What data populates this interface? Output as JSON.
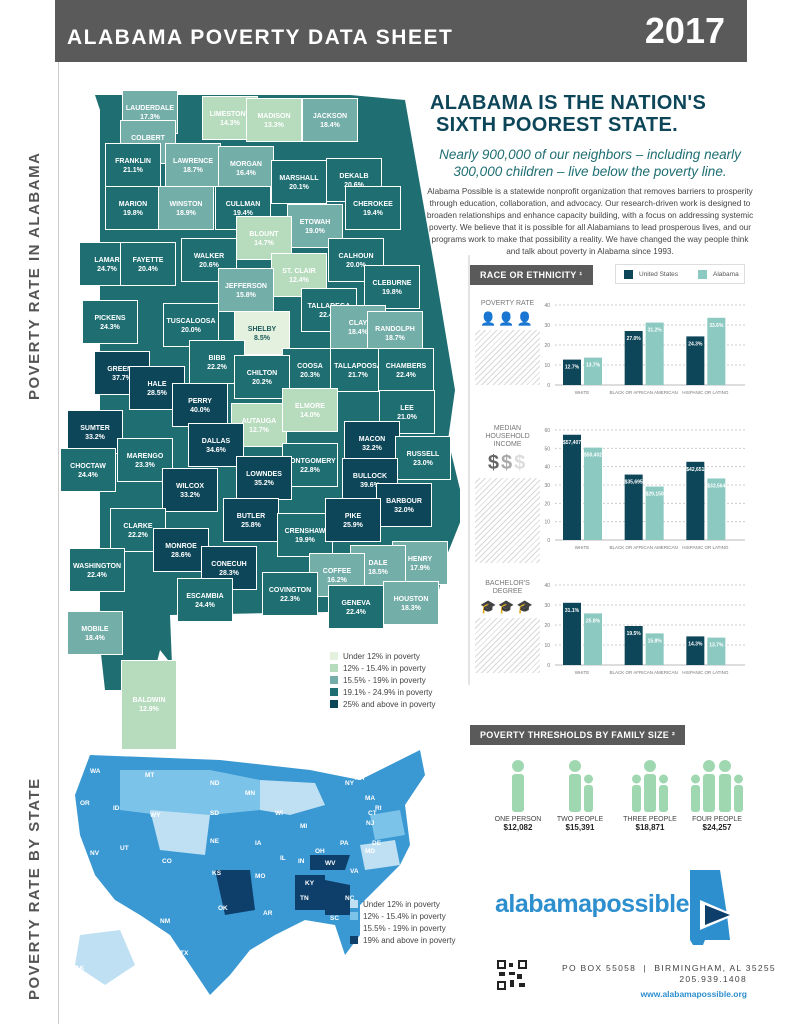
{
  "header": {
    "title": "ALABAMA POVERTY DATA SHEET",
    "year": "2017"
  },
  "side_labels": {
    "alabama": "POVERTY RATE IN ALABAMA",
    "states": "POVERTY RATE BY STATE"
  },
  "headline": [
    "ALABAMA IS THE NATION'S",
    "SIXTH POOREST STATE."
  ],
  "subheadline": "Nearly 900,000 of our neighbors – including nearly 300,000 children – live below the poverty line.",
  "paragraph": "Alabama Possible is a statewide nonprofit organization that removes barriers to prosperity through education, collaboration, and advocacy. Our research-driven work is designed to broaden relationships and enhance capacity building, with a focus on addressing systemic poverty. We believe that it is possible for all Alabamians to lead prosperous lives, and our programs work to make that possibility a reality. We have changed the way people think and talk about poverty in Alabama since 1993.",
  "colors": {
    "tier1": "#e4f1de",
    "tier2": "#b7dbbd",
    "tier3": "#74aea9",
    "tier4": "#1e6e72",
    "tier5": "#0d4659",
    "us": "#0d4659",
    "alabama": "#8cc9c1"
  },
  "counties": [
    {
      "name": "LAUDERDALE",
      "rate": "17.3%"
    },
    {
      "name": "LIMESTONE",
      "rate": "14.3%"
    },
    {
      "name": "MADISON",
      "rate": "13.3%"
    },
    {
      "name": "JACKSON",
      "rate": "18.4%"
    },
    {
      "name": "COLBERT",
      "rate": "18.1%"
    },
    {
      "name": "FRANKLIN",
      "rate": "21.1%"
    },
    {
      "name": "LAWRENCE",
      "rate": "18.7%"
    },
    {
      "name": "MORGAN",
      "rate": "16.4%"
    },
    {
      "name": "MARSHALL",
      "rate": "20.1%"
    },
    {
      "name": "DEKALB",
      "rate": "20.6%"
    },
    {
      "name": "MARION",
      "rate": "19.8%"
    },
    {
      "name": "WINSTON",
      "rate": "18.9%"
    },
    {
      "name": "CULLMAN",
      "rate": "19.4%"
    },
    {
      "name": "ETOWAH",
      "rate": "19.0%"
    },
    {
      "name": "CHEROKEE",
      "rate": "19.4%"
    },
    {
      "name": "BLOUNT",
      "rate": "14.7%"
    },
    {
      "name": "LAMAR",
      "rate": "24.7%"
    },
    {
      "name": "FAYETTE",
      "rate": "20.4%"
    },
    {
      "name": "WALKER",
      "rate": "20.6%"
    },
    {
      "name": "CALHOUN",
      "rate": "20.0%"
    },
    {
      "name": "ST. CLAIR",
      "rate": "12.4%"
    },
    {
      "name": "JEFFERSON",
      "rate": "15.8%"
    },
    {
      "name": "CLEBURNE",
      "rate": "19.8%"
    },
    {
      "name": "PICKENS",
      "rate": "24.3%"
    },
    {
      "name": "TUSCALOOSA",
      "rate": "20.0%"
    },
    {
      "name": "TALLADEGA",
      "rate": "22.4%"
    },
    {
      "name": "CLAY",
      "rate": "18.4%"
    },
    {
      "name": "RANDOLPH",
      "rate": "18.7%"
    },
    {
      "name": "SHELBY",
      "rate": "8.5%"
    },
    {
      "name": "BIBB",
      "rate": "22.2%"
    },
    {
      "name": "GREENE",
      "rate": "37.7%"
    },
    {
      "name": "HALE",
      "rate": "28.5%"
    },
    {
      "name": "COOSA",
      "rate": "20.3%"
    },
    {
      "name": "TALLAPOOSA",
      "rate": "21.7%"
    },
    {
      "name": "CHAMBERS",
      "rate": "22.4%"
    },
    {
      "name": "CHILTON",
      "rate": "20.2%"
    },
    {
      "name": "PERRY",
      "rate": "40.0%"
    },
    {
      "name": "AUTAUGA",
      "rate": "12.7%"
    },
    {
      "name": "ELMORE",
      "rate": "14.0%"
    },
    {
      "name": "LEE",
      "rate": "21.0%"
    },
    {
      "name": "SUMTER",
      "rate": "33.2%"
    },
    {
      "name": "DALLAS",
      "rate": "34.6%"
    },
    {
      "name": "MACON",
      "rate": "32.2%"
    },
    {
      "name": "RUSSELL",
      "rate": "23.0%"
    },
    {
      "name": "MARENGO",
      "rate": "23.3%"
    },
    {
      "name": "MONTGOMERY",
      "rate": "22.8%"
    },
    {
      "name": "CHOCTAW",
      "rate": "24.4%"
    },
    {
      "name": "LOWNDES",
      "rate": "35.2%"
    },
    {
      "name": "BULLOCK",
      "rate": "39.6%"
    },
    {
      "name": "WILCOX",
      "rate": "33.2%"
    },
    {
      "name": "BARBOUR",
      "rate": "32.0%"
    },
    {
      "name": "CLARKE",
      "rate": "22.2%"
    },
    {
      "name": "BUTLER",
      "rate": "25.8%"
    },
    {
      "name": "CRENSHAW",
      "rate": "19.9%"
    },
    {
      "name": "PIKE",
      "rate": "25.9%"
    },
    {
      "name": "MONROE",
      "rate": "28.6%"
    },
    {
      "name": "CONECUH",
      "rate": "28.3%"
    },
    {
      "name": "HENRY",
      "rate": "17.9%"
    },
    {
      "name": "WASHINGTON",
      "rate": "22.4%"
    },
    {
      "name": "DALE",
      "rate": "18.5%"
    },
    {
      "name": "COFFEE",
      "rate": "16.2%"
    },
    {
      "name": "COVINGTON",
      "rate": "22.3%"
    },
    {
      "name": "ESCAMBIA",
      "rate": "24.4%"
    },
    {
      "name": "GENEVA",
      "rate": "22.4%"
    },
    {
      "name": "HOUSTON",
      "rate": "18.3%"
    },
    {
      "name": "MOBILE",
      "rate": "18.4%"
    },
    {
      "name": "BALDWIN",
      "rate": "12.9%"
    }
  ],
  "al_legend": [
    "Under 12% in poverty",
    "12% - 15.4% in poverty",
    "15.5% - 19% in poverty",
    "19.1% - 24.9% in poverty",
    "25% and above in poverty"
  ],
  "us_legend": [
    "Under 12% in poverty",
    "12% - 15.4% in poverty",
    "15.5% - 19% in poverty",
    "19% and above in poverty"
  ],
  "states": [
    "WA",
    "MT",
    "ND",
    "MN",
    "ME",
    "OR",
    "ID",
    "WY",
    "SD",
    "WI",
    "MI",
    "NY",
    "VT",
    "NH",
    "MA",
    "NE",
    "IA",
    "IL",
    "IN",
    "OH",
    "PA",
    "NJ",
    "CT",
    "RI",
    "NV",
    "UT",
    "CO",
    "KS",
    "MO",
    "KY",
    "WV",
    "VA",
    "MD",
    "DE",
    "CA",
    "AZ",
    "NM",
    "OK",
    "AR",
    "TN",
    "NC",
    "SC",
    "TX",
    "LA",
    "MS",
    "AL",
    "GA",
    "FL",
    "AK",
    "HI"
  ],
  "race_section": {
    "title": "RACE OR ETHNICITY ¹",
    "legend": [
      "United States",
      "Alabama"
    ]
  },
  "chart_data": [
    {
      "type": "bar",
      "title": "POVERTY RATE",
      "icon": "person-icon",
      "categories": [
        "WHITE",
        "BLACK OR AFRICAN AMERICAN",
        "HISPANIC OR LATINO"
      ],
      "ylim": [
        0,
        40
      ],
      "yticks": [
        "0",
        "10",
        "20",
        "30",
        "40"
      ],
      "grid": true,
      "series": [
        {
          "name": "United States",
          "values": [
            12.7,
            27.0,
            24.3
          ],
          "labels": [
            "12.7%",
            "27.0%",
            "24.3%"
          ]
        },
        {
          "name": "Alabama",
          "values": [
            13.7,
            31.2,
            33.6
          ],
          "labels": [
            "13.7%",
            "31.2%",
            "33.6%"
          ]
        }
      ]
    },
    {
      "type": "bar",
      "title": "MEDIAN HOUSEHOLD INCOME",
      "icon": "dollar-icon",
      "categories": [
        "WHITE",
        "BLACK OR AFRICAN AMERICAN",
        "HISPANIC OR LATINO"
      ],
      "ylim": [
        0,
        60
      ],
      "yticks": [
        "0",
        "10",
        "20",
        "30",
        "40",
        "50",
        "60"
      ],
      "grid": true,
      "series": [
        {
          "name": "United States",
          "values": [
            57.407,
            35.695,
            42.651
          ],
          "labels": [
            "$57,407",
            "$35,695",
            "$42,651"
          ]
        },
        {
          "name": "Alabama",
          "values": [
            50.402,
            29.15,
            33.564
          ],
          "labels": [
            "$50,402",
            "$29,150",
            "$33,564"
          ]
        }
      ]
    },
    {
      "type": "bar",
      "title": "BACHELOR'S DEGREE",
      "icon": "graduation-cap-icon",
      "categories": [
        "WHITE",
        "BLACK OR AFRICAN AMERICAN",
        "HISPANIC OR LATINO"
      ],
      "ylim": [
        0,
        40
      ],
      "yticks": [
        "0",
        "10",
        "20",
        "30",
        "40"
      ],
      "grid": true,
      "series": [
        {
          "name": "United States",
          "values": [
            31.1,
            19.5,
            14.3
          ],
          "labels": [
            "31.1%",
            "19.5%",
            "14.3%"
          ]
        },
        {
          "name": "Alabama",
          "values": [
            25.8,
            15.8,
            13.7
          ],
          "labels": [
            "25.8%",
            "15.8%",
            "13.7%"
          ]
        }
      ]
    }
  ],
  "thresholds": {
    "title": "POVERTY THRESHOLDS BY FAMILY SIZE ²",
    "items": [
      {
        "label": "ONE PERSON",
        "value": "$12,082"
      },
      {
        "label": "TWO PEOPLE",
        "value": "$15,391"
      },
      {
        "label": "THREE PEOPLE",
        "value": "$18,871"
      },
      {
        "label": "FOUR PEOPLE",
        "value": "$24,257"
      }
    ]
  },
  "logo": {
    "text": "alabamapossible"
  },
  "contact": {
    "address": "PO BOX 55058  |  BIRMINGHAM, AL 35255",
    "phone": "205.939.1408",
    "website": "www.alabamapossible.org"
  }
}
